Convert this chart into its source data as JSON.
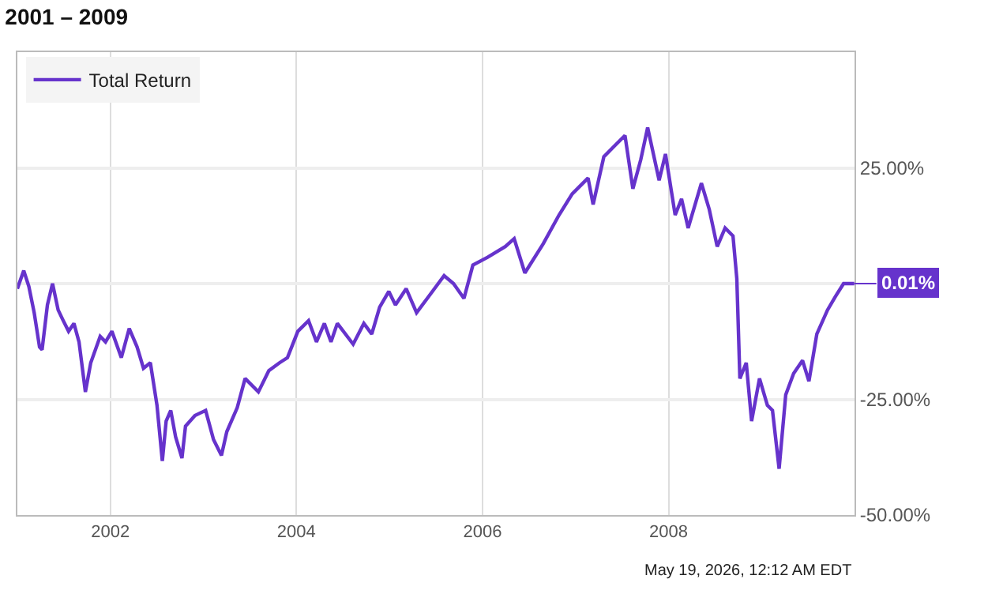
{
  "chart_data": {
    "type": "line",
    "title": "2001 – 2009",
    "x": [
      "2001-01-01",
      "2001-01-26",
      "2001-02-15",
      "2001-03-08",
      "2001-03-29",
      "2001-04-08",
      "2001-04-29",
      "2001-05-19",
      "2001-06-10",
      "2001-06-30",
      "2001-07-21",
      "2001-08-11",
      "2001-08-31",
      "2001-09-25",
      "2001-10-16",
      "2001-11-22",
      "2001-12-13",
      "2002-01-07",
      "2002-02-13",
      "2002-03-16",
      "2002-04-16",
      "2002-05-11",
      "2002-06-07",
      "2002-07-03",
      "2002-07-24",
      "2002-08-08",
      "2002-08-26",
      "2002-09-14",
      "2002-10-09",
      "2002-10-23",
      "2002-11-29",
      "2003-01-10",
      "2003-02-10",
      "2003-03-13",
      "2003-04-03",
      "2003-05-14",
      "2003-06-14",
      "2003-08-05",
      "2003-09-15",
      "2003-10-27",
      "2003-11-27",
      "2004-01-07",
      "2004-02-18",
      "2004-03-20",
      "2004-04-20",
      "2004-05-16",
      "2004-06-10",
      "2004-08-11",
      "2004-09-22",
      "2004-10-23",
      "2004-11-23",
      "2004-12-29",
      "2005-01-24",
      "2005-03-07",
      "2005-04-17",
      "2005-06-18",
      "2005-08-03",
      "2005-09-09",
      "2005-10-20",
      "2005-11-24",
      "2006-01-21",
      "2006-03-31",
      "2006-05-05",
      "2006-06-16",
      "2006-08-27",
      "2006-10-28",
      "2006-12-19",
      "2007-02-19",
      "2007-03-11",
      "2007-04-22",
      "2007-06-02",
      "2007-07-14",
      "2007-08-14",
      "2007-09-14",
      "2007-10-11",
      "2007-11-25",
      "2007-12-20",
      "2008-01-27",
      "2008-02-21",
      "2008-03-18",
      "2008-05-09",
      "2008-06-09",
      "2008-07-10",
      "2008-08-10",
      "2008-09-10",
      "2008-09-25",
      "2008-10-07",
      "2008-11-01",
      "2008-11-22",
      "2008-12-23",
      "2009-01-23",
      "2009-02-12",
      "2009-03-10",
      "2009-04-05",
      "2009-05-06",
      "2009-06-10",
      "2009-07-05",
      "2009-08-05",
      "2009-09-16",
      "2009-10-17",
      "2009-11-18",
      "2009-12-30"
    ],
    "series": [
      {
        "name": "Total Return",
        "color": "#6633cc",
        "values": [
          -1.1,
          2.8,
          -0.6,
          -6.3,
          -13.7,
          -14.3,
          -4.6,
          0,
          -5.7,
          -8,
          -10.3,
          -8.6,
          -12.6,
          -23.4,
          -17.1,
          -11.4,
          -12.6,
          -10.3,
          -16,
          -9.7,
          -13.7,
          -18.3,
          -17.1,
          -26.3,
          -38.3,
          -29.7,
          -27.4,
          -33.1,
          -37.7,
          -30.8,
          -28.5,
          -27.4,
          -33.7,
          -37.1,
          -32,
          -26.8,
          -20.5,
          -23.4,
          -18.8,
          -17.1,
          -16,
          -10.3,
          -8,
          -12.6,
          -8.6,
          -12.6,
          -8.6,
          -13.1,
          -8.6,
          -10.9,
          -5.1,
          -1.7,
          -4.6,
          -1.1,
          -6.3,
          -1.7,
          1.7,
          0,
          -3.2,
          4,
          5.7,
          8,
          9.7,
          2.3,
          8.6,
          14.8,
          19.4,
          22.8,
          17.1,
          27.4,
          29.7,
          32,
          20.5,
          26.8,
          33.7,
          22.3,
          28,
          14.8,
          18.3,
          12,
          21.7,
          16,
          8,
          12,
          10.3,
          1.1,
          -20.5,
          -17.1,
          -29.7,
          -20.5,
          -26.3,
          -27.4,
          -40,
          -24,
          -19.4,
          -16.6,
          -21.1,
          -10.9,
          -5.7,
          -2.8,
          0,
          0.01
        ]
      }
    ],
    "xlim": [
      "2001-01-01",
      "2009-12-31"
    ],
    "xticks": [
      {
        "value": "2002-01-01",
        "label": "2002"
      },
      {
        "value": "2004-01-01",
        "label": "2004"
      },
      {
        "value": "2006-01-01",
        "label": "2006"
      },
      {
        "value": "2008-01-01",
        "label": "2008"
      }
    ],
    "ylim": [
      -50,
      50
    ],
    "yticks": [
      {
        "value": -50,
        "label": "-50.00%"
      },
      {
        "value": -25,
        "label": "-25.00%"
      },
      {
        "value": 0,
        "label": null
      },
      {
        "value": 25,
        "label": "25.00%"
      }
    ],
    "grid": true,
    "legend": "top left",
    "marker": "none",
    "line_style": "solid",
    "annotations": [
      {
        "text": "0.01%",
        "x": "2009-12-30",
        "y": 0.01
      },
      "May 19, 2026, 12:12 AM EDT"
    ]
  }
}
